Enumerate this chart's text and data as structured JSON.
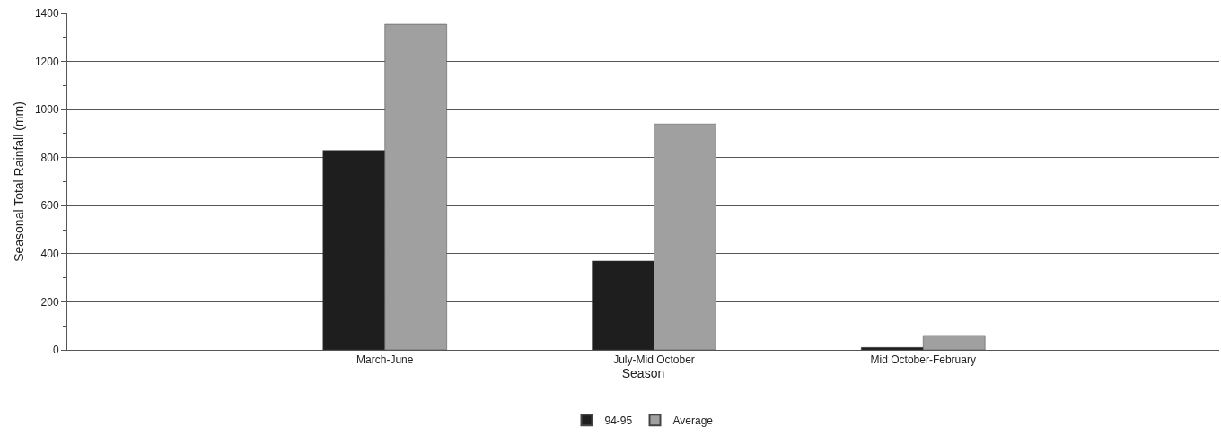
{
  "chart_data": {
    "type": "bar",
    "xlabel": "Season",
    "ylabel": "Seasonal Total Rainfall (mm)",
    "categories": [
      "March-June",
      "July-Mid October",
      "Mid October-February"
    ],
    "series": [
      {
        "name": "94-95",
        "color": "#1e1e1e",
        "values": [
          830,
          370,
          10
        ]
      },
      {
        "name": "Average",
        "color": "#a0a0a0",
        "values": [
          1355,
          940,
          60
        ]
      }
    ],
    "ylim": [
      0,
      1400
    ],
    "yticks": [
      0,
      200,
      400,
      600,
      800,
      1000,
      1200,
      1400
    ],
    "grid": "y",
    "legend": "bottom"
  }
}
